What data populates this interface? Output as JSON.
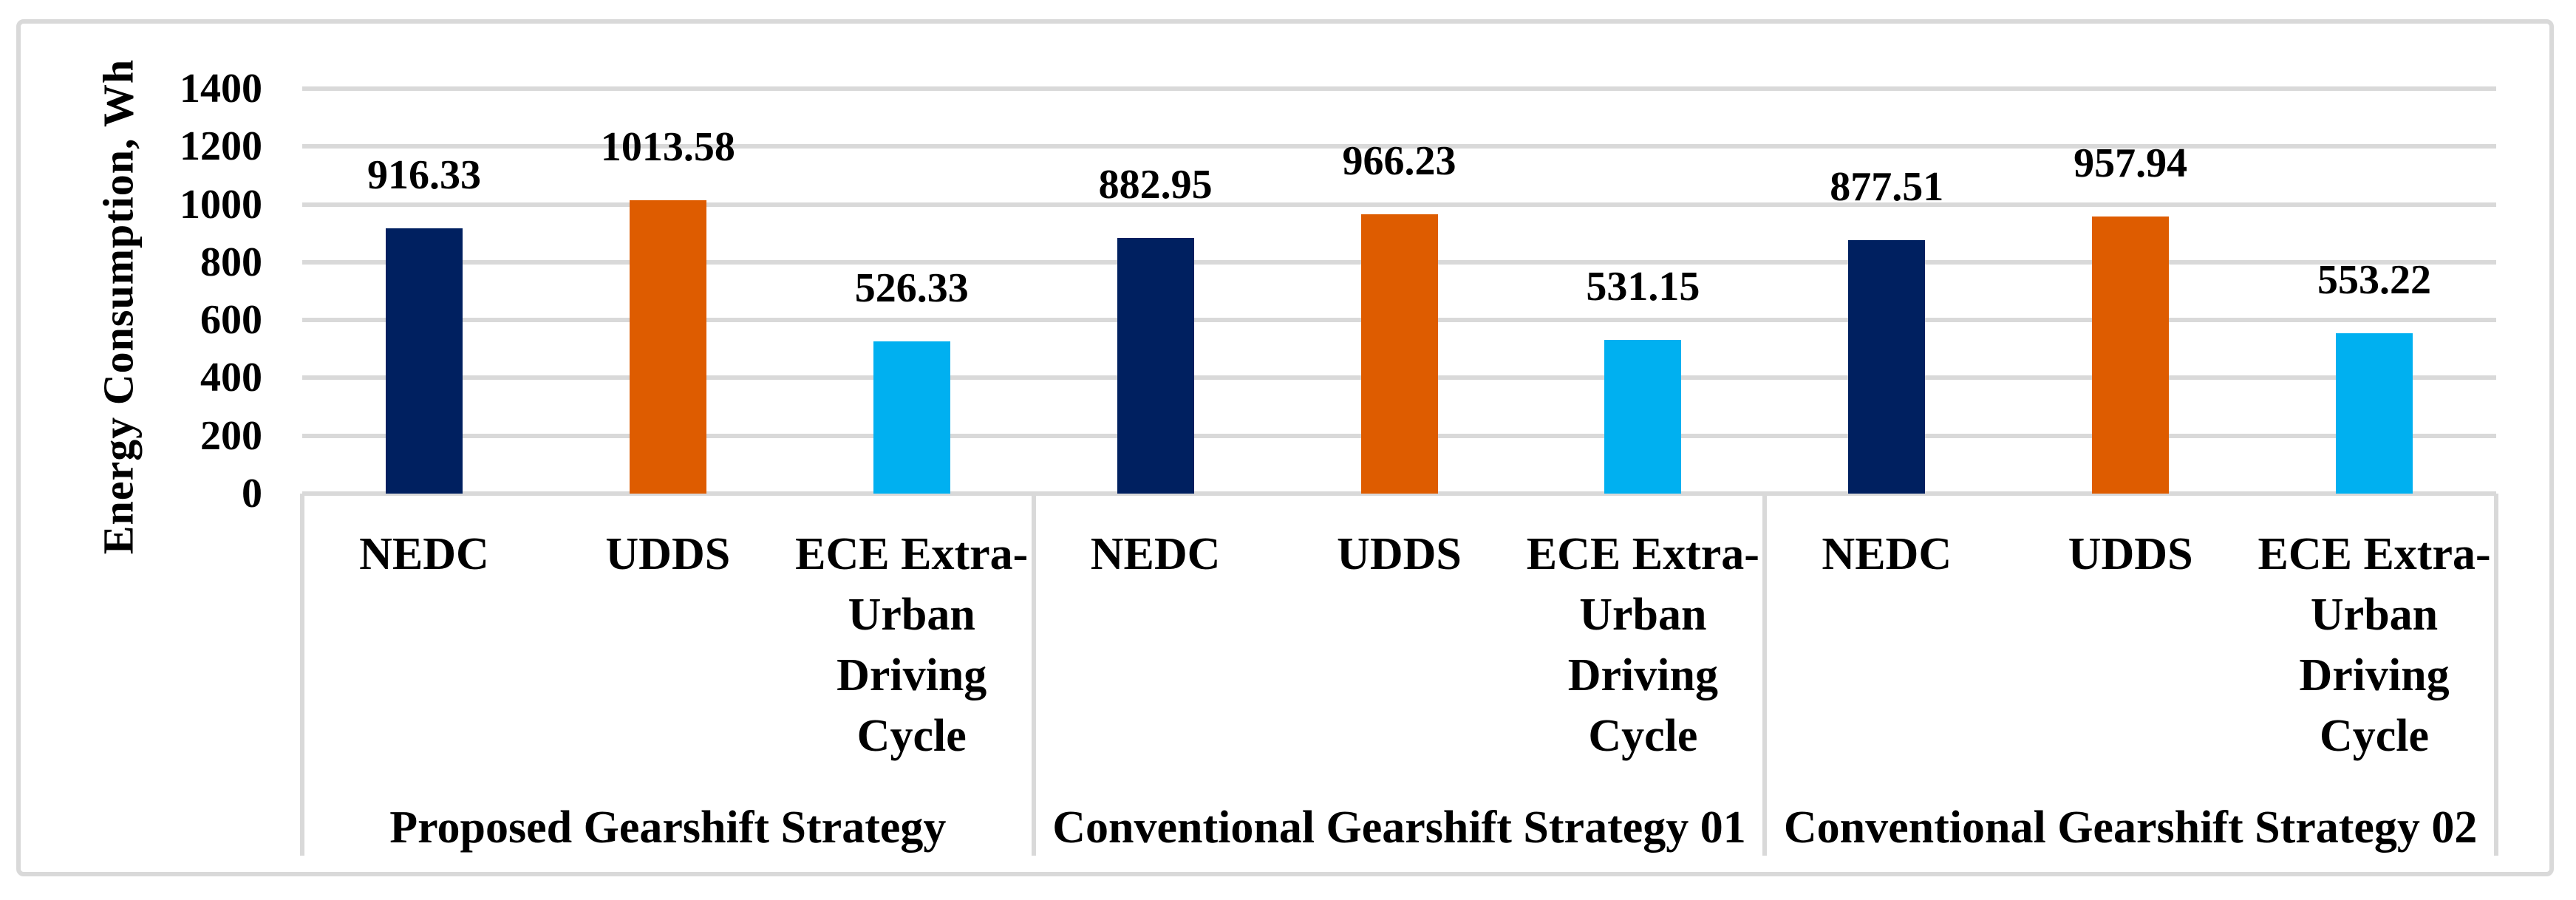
{
  "chart_data": {
    "type": "bar",
    "title": "",
    "ylabel": "Energy Consumption, Wh",
    "xlabel": "",
    "ylim": [
      0,
      1400
    ],
    "ytick_step": 200,
    "yticks": [
      0,
      200,
      400,
      600,
      800,
      1000,
      1200,
      1400
    ],
    "grid": true,
    "legend_position": "none",
    "categories_per_group": [
      "NEDC",
      "UDDS",
      "ECE Extra-Urban Driving Cycle"
    ],
    "category_label_lines": [
      [
        "NEDC"
      ],
      [
        "UDDS"
      ],
      [
        "ECE Extra-",
        "Urban",
        "Driving",
        "Cycle"
      ]
    ],
    "bar_colors": [
      "#002060",
      "#DE5C00",
      "#00B0F0"
    ],
    "series_names": [
      "NEDC",
      "UDDS",
      "ECE Extra-Urban Driving Cycle"
    ],
    "groups": [
      {
        "label": "Proposed Gearshift Strategy",
        "values": [
          916.33,
          1013.58,
          526.33
        ]
      },
      {
        "label": "Conventional Gearshift Strategy 01",
        "values": [
          882.95,
          966.23,
          531.15
        ]
      },
      {
        "label": "Conventional Gearshift Strategy 02",
        "values": [
          877.51,
          957.94,
          553.22
        ]
      }
    ],
    "data_label_decimals": 2,
    "colors": {
      "grid": "#D9D9D9",
      "axis_line": "#D9D9D9",
      "frame_border": "#D9D9D9",
      "text": "#000000",
      "background": "#FFFFFF"
    }
  }
}
